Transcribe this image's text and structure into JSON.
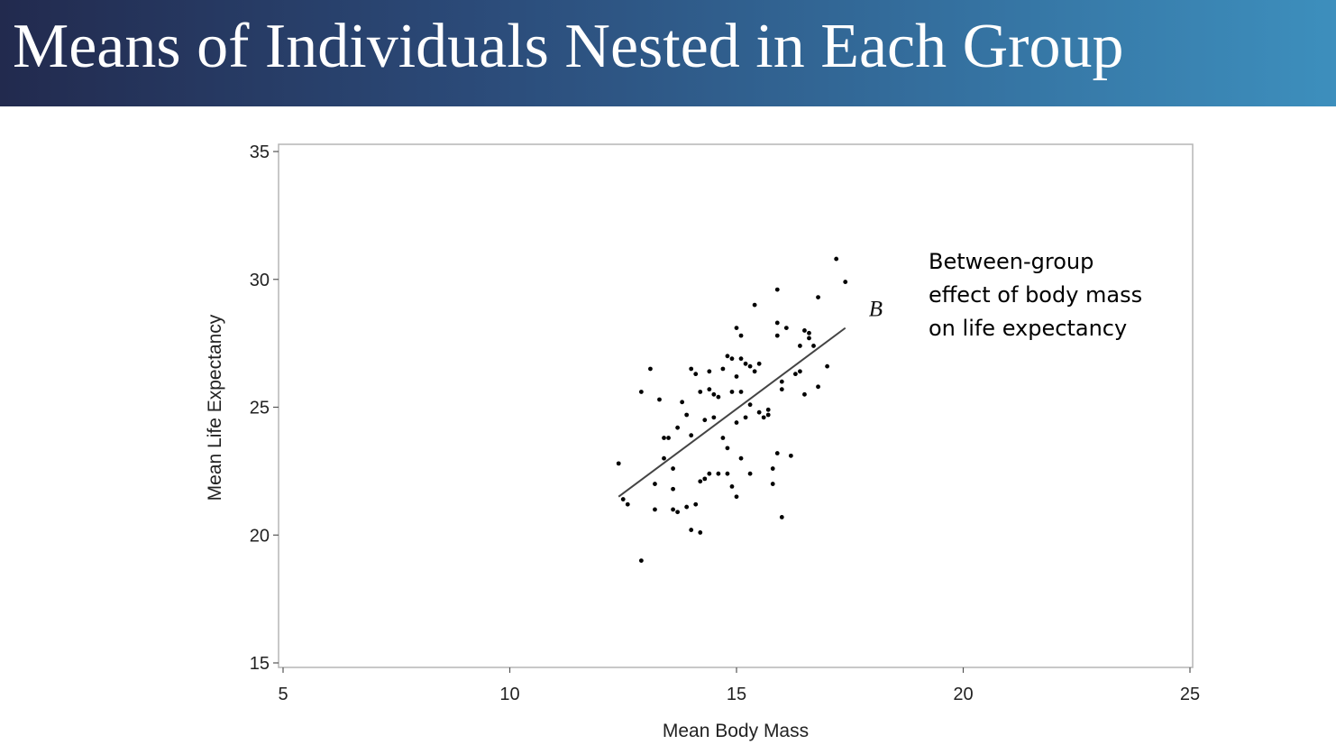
{
  "slide": {
    "title": "Means of Individuals Nested in Each Group",
    "annotation_lines": [
      "Between-group",
      "effect of body mass",
      "on life expectancy"
    ],
    "theme_colors": {
      "title_gradient_start": "#222a4e",
      "title_gradient_end": "#3d8fbd",
      "title_text": "#ffffff"
    }
  },
  "chart_data": {
    "type": "scatter",
    "xlabel": "Mean Body Mass",
    "ylabel": "Mean Life Expectancy",
    "xlim": [
      5,
      25
    ],
    "ylim": [
      15,
      35
    ],
    "xticks": [
      5,
      10,
      15,
      20,
      25
    ],
    "yticks": [
      15,
      20,
      25,
      30,
      35
    ],
    "grid": false,
    "point_color": "#000000",
    "points": [
      [
        12.4,
        22.8
      ],
      [
        12.5,
        21.4
      ],
      [
        12.6,
        21.2
      ],
      [
        12.9,
        25.6
      ],
      [
        12.9,
        19.0
      ],
      [
        13.1,
        26.5
      ],
      [
        13.2,
        22.0
      ],
      [
        13.2,
        21.0
      ],
      [
        13.3,
        25.3
      ],
      [
        13.4,
        23.8
      ],
      [
        13.4,
        23.0
      ],
      [
        13.5,
        23.8
      ],
      [
        13.6,
        22.6
      ],
      [
        13.6,
        21.8
      ],
      [
        13.6,
        21.0
      ],
      [
        13.7,
        24.2
      ],
      [
        13.7,
        20.9
      ],
      [
        13.8,
        25.2
      ],
      [
        13.9,
        24.7
      ],
      [
        13.9,
        21.1
      ],
      [
        14.0,
        26.5
      ],
      [
        14.0,
        23.9
      ],
      [
        14.0,
        20.2
      ],
      [
        14.1,
        26.3
      ],
      [
        14.1,
        21.2
      ],
      [
        14.2,
        25.6
      ],
      [
        14.2,
        22.1
      ],
      [
        14.2,
        20.1
      ],
      [
        14.3,
        24.5
      ],
      [
        14.3,
        22.2
      ],
      [
        14.4,
        26.4
      ],
      [
        14.4,
        25.7
      ],
      [
        14.4,
        22.4
      ],
      [
        14.5,
        25.5
      ],
      [
        14.5,
        24.6
      ],
      [
        14.6,
        25.4
      ],
      [
        14.6,
        22.4
      ],
      [
        14.7,
        26.5
      ],
      [
        14.7,
        23.8
      ],
      [
        14.8,
        27.0
      ],
      [
        14.8,
        23.4
      ],
      [
        14.8,
        22.4
      ],
      [
        14.9,
        26.9
      ],
      [
        14.9,
        25.6
      ],
      [
        14.9,
        21.9
      ],
      [
        15.0,
        28.1
      ],
      [
        15.0,
        26.2
      ],
      [
        15.0,
        24.4
      ],
      [
        15.0,
        21.5
      ],
      [
        15.1,
        27.8
      ],
      [
        15.1,
        26.9
      ],
      [
        15.1,
        25.6
      ],
      [
        15.1,
        23.0
      ],
      [
        15.2,
        26.7
      ],
      [
        15.2,
        24.6
      ],
      [
        15.3,
        26.6
      ],
      [
        15.3,
        25.1
      ],
      [
        15.3,
        22.4
      ],
      [
        15.4,
        29.0
      ],
      [
        15.4,
        26.4
      ],
      [
        15.5,
        26.7
      ],
      [
        15.5,
        24.8
      ],
      [
        15.6,
        24.6
      ],
      [
        15.7,
        24.9
      ],
      [
        15.7,
        24.7
      ],
      [
        15.8,
        22.6
      ],
      [
        15.8,
        22.0
      ],
      [
        15.9,
        29.6
      ],
      [
        15.9,
        28.3
      ],
      [
        15.9,
        27.8
      ],
      [
        15.9,
        23.2
      ],
      [
        16.0,
        26.0
      ],
      [
        16.0,
        25.7
      ],
      [
        16.0,
        20.7
      ],
      [
        16.1,
        28.1
      ],
      [
        16.2,
        23.1
      ],
      [
        16.3,
        26.3
      ],
      [
        16.4,
        27.4
      ],
      [
        16.4,
        26.4
      ],
      [
        16.5,
        25.5
      ],
      [
        16.5,
        28.0
      ],
      [
        16.6,
        27.9
      ],
      [
        16.6,
        27.7
      ],
      [
        16.7,
        27.4
      ],
      [
        16.8,
        29.3
      ],
      [
        16.8,
        25.8
      ],
      [
        17.0,
        26.6
      ],
      [
        17.2,
        30.8
      ],
      [
        17.4,
        29.9
      ]
    ],
    "fit_line": {
      "x": [
        12.4,
        17.4
      ],
      "y": [
        21.5,
        28.1
      ],
      "label": "B",
      "color": "#444444"
    }
  }
}
